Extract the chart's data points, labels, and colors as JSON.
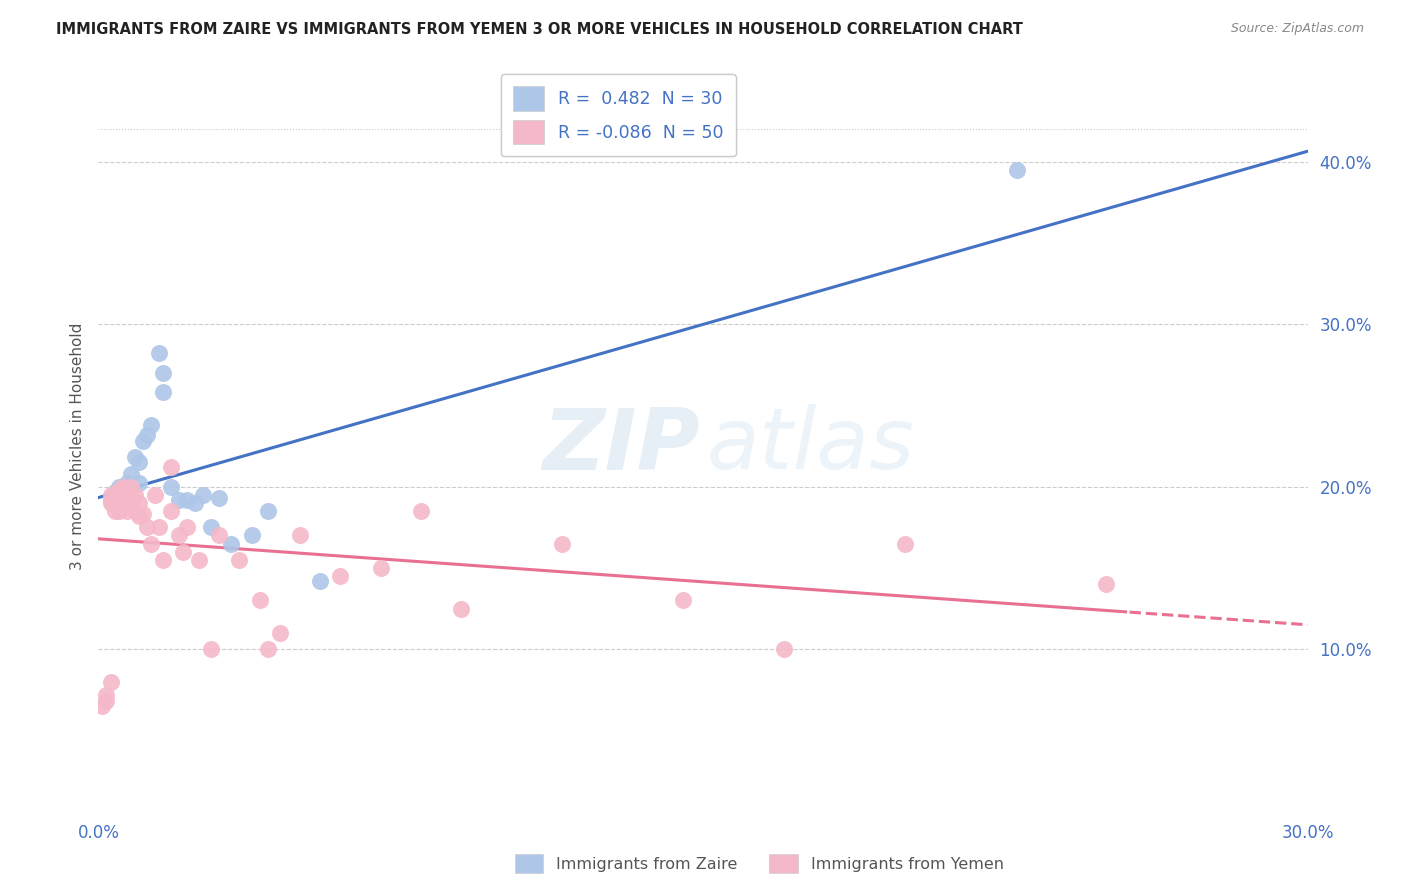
{
  "title": "IMMIGRANTS FROM ZAIRE VS IMMIGRANTS FROM YEMEN 3 OR MORE VEHICLES IN HOUSEHOLD CORRELATION CHART",
  "source": "Source: ZipAtlas.com",
  "ylabel_left": "3 or more Vehicles in Household",
  "legend_zaire": "Immigrants from Zaire",
  "legend_yemen": "Immigrants from Yemen",
  "R_zaire": 0.482,
  "N_zaire": 30,
  "R_yemen": -0.086,
  "N_yemen": 50,
  "xlim": [
    0.0,
    0.3
  ],
  "ylim": [
    0.0,
    0.45
  ],
  "zaire_color": "#aec6e8",
  "yemen_color": "#f5b8c8",
  "zaire_line_color": "#4472c4",
  "yemen_line_color": "#e87090",
  "zaire_x": [
    0.003,
    0.004,
    0.005,
    0.005,
    0.006,
    0.007,
    0.007,
    0.008,
    0.008,
    0.009,
    0.01,
    0.01,
    0.011,
    0.012,
    0.013,
    0.015,
    0.016,
    0.016,
    0.018,
    0.02,
    0.022,
    0.024,
    0.026,
    0.028,
    0.03,
    0.033,
    0.038,
    0.042,
    0.055,
    0.228
  ],
  "zaire_y": [
    0.192,
    0.197,
    0.2,
    0.195,
    0.198,
    0.195,
    0.202,
    0.192,
    0.208,
    0.218,
    0.202,
    0.215,
    0.228,
    0.232,
    0.238,
    0.282,
    0.258,
    0.27,
    0.2,
    0.192,
    0.192,
    0.19,
    0.195,
    0.175,
    0.193,
    0.165,
    0.17,
    0.185,
    0.142,
    0.395
  ],
  "yemen_x": [
    0.001,
    0.002,
    0.002,
    0.003,
    0.003,
    0.004,
    0.004,
    0.005,
    0.005,
    0.005,
    0.005,
    0.006,
    0.006,
    0.007,
    0.007,
    0.008,
    0.008,
    0.009,
    0.009,
    0.01,
    0.01,
    0.011,
    0.012,
    0.013,
    0.014,
    0.015,
    0.016,
    0.018,
    0.018,
    0.02,
    0.021,
    0.022,
    0.025,
    0.028,
    0.03,
    0.035,
    0.04,
    0.042,
    0.045,
    0.05,
    0.06,
    0.07,
    0.08,
    0.09,
    0.115,
    0.145,
    0.17,
    0.2,
    0.25,
    0.003
  ],
  "yemen_y": [
    0.065,
    0.068,
    0.072,
    0.19,
    0.195,
    0.185,
    0.192,
    0.185,
    0.192,
    0.195,
    0.198,
    0.195,
    0.2,
    0.185,
    0.197,
    0.19,
    0.2,
    0.185,
    0.195,
    0.182,
    0.19,
    0.183,
    0.175,
    0.165,
    0.195,
    0.175,
    0.155,
    0.185,
    0.212,
    0.17,
    0.16,
    0.175,
    0.155,
    0.1,
    0.17,
    0.155,
    0.13,
    0.1,
    0.11,
    0.17,
    0.145,
    0.15,
    0.185,
    0.125,
    0.165,
    0.13,
    0.1,
    0.165,
    0.14,
    0.08
  ]
}
